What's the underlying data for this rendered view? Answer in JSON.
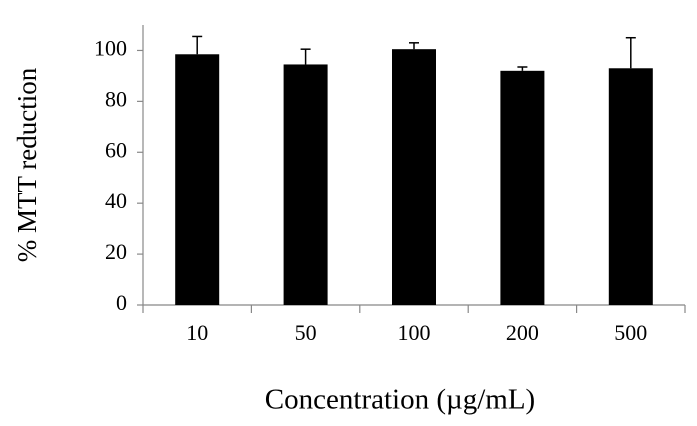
{
  "chart_data": {
    "type": "bar",
    "x_label": "Concentration (µg/mL)",
    "y_label": "% MTT reduction",
    "categories": [
      "10",
      "50",
      "100",
      "200",
      "500"
    ],
    "values": [
      98.5,
      94.5,
      100.5,
      92,
      93
    ],
    "errors": [
      7,
      6,
      2.5,
      1.5,
      12
    ],
    "color": "#000000",
    "ylim": [
      0,
      110
    ],
    "yticks": [
      0,
      20,
      40,
      60,
      80,
      100
    ],
    "grid": false
  }
}
